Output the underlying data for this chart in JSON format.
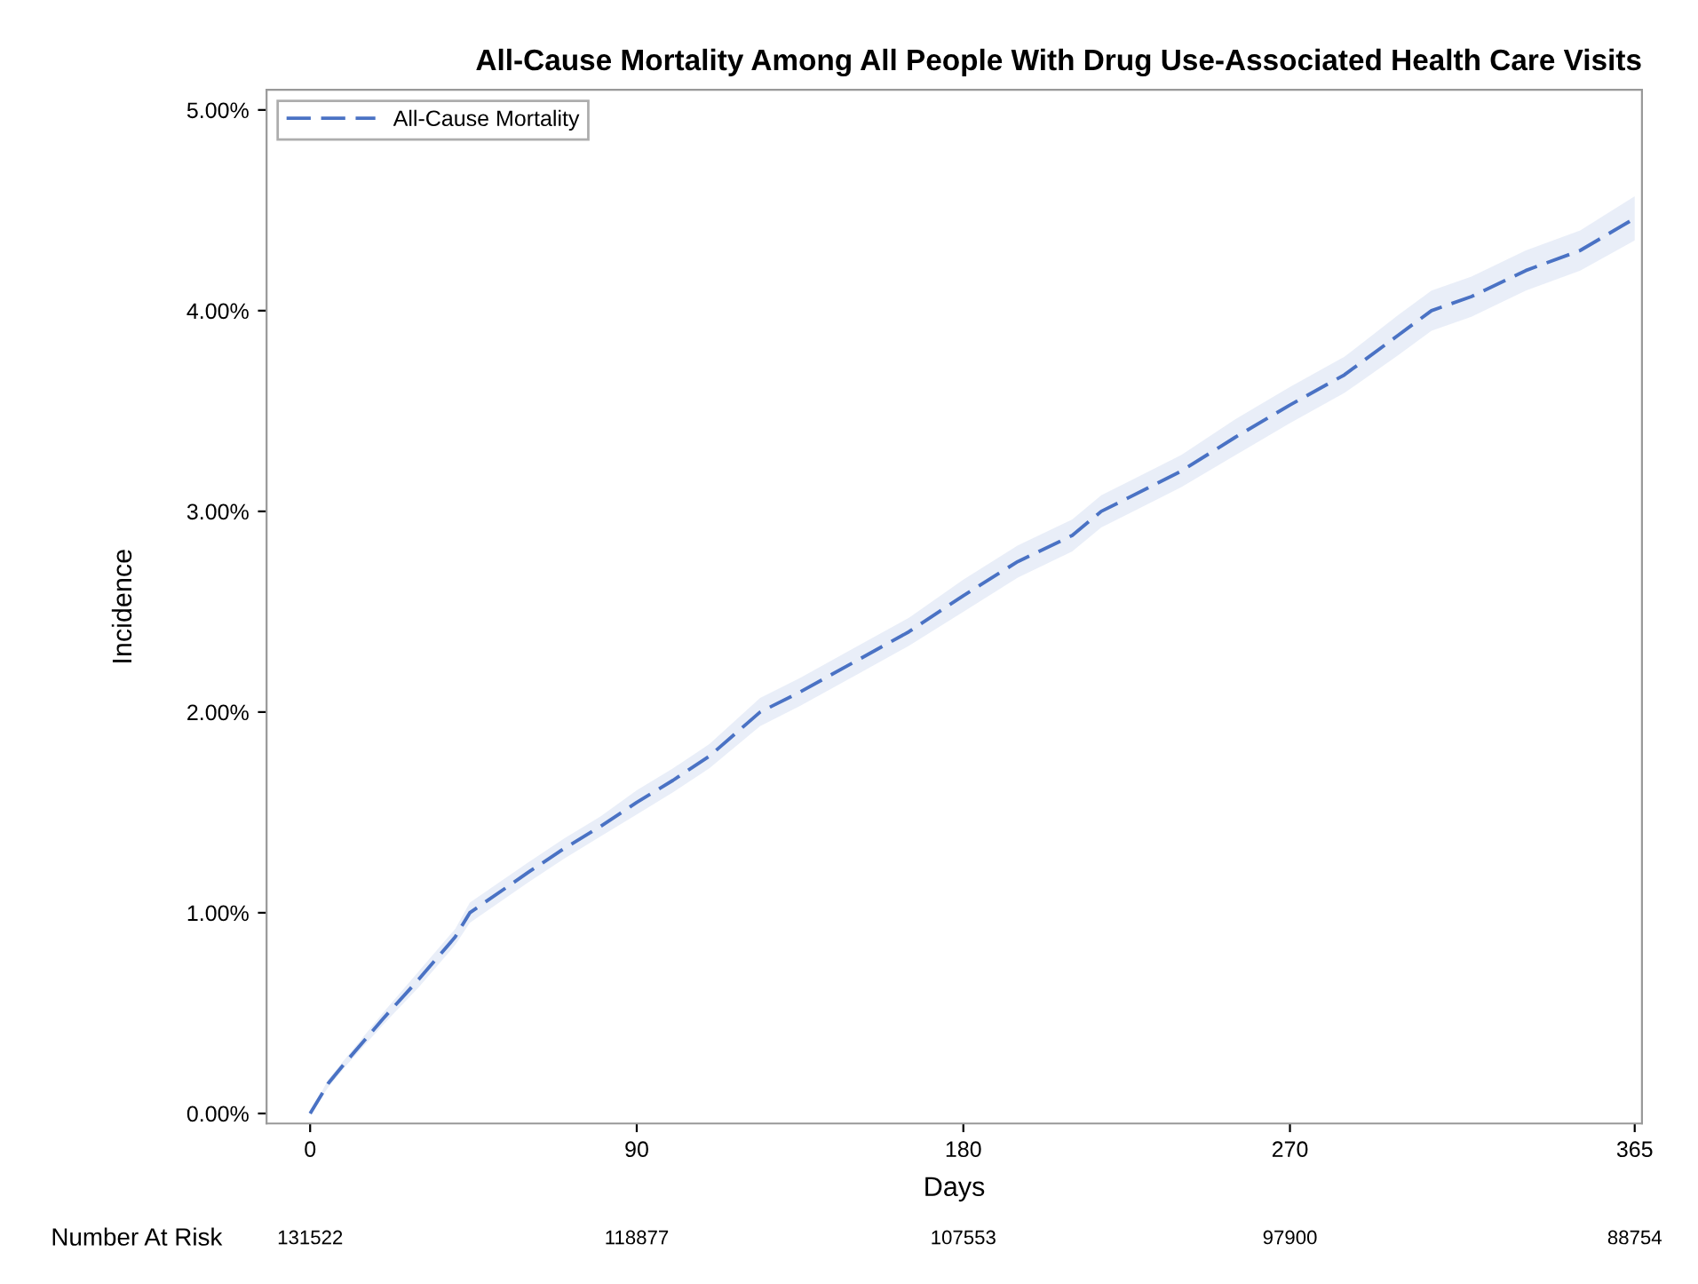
{
  "chart_data": {
    "type": "line",
    "title": "All-Cause Mortality Among All People With Drug Use-Associated Health Care Visits",
    "xlabel": "Days",
    "ylabel": "Incidence",
    "x": [
      0,
      5,
      10,
      20,
      30,
      40,
      44,
      60,
      70,
      80,
      90,
      100,
      110,
      124,
      135,
      150,
      165,
      180,
      195,
      210,
      218,
      240,
      255,
      270,
      285,
      300,
      309,
      320,
      335,
      350,
      365
    ],
    "series": [
      {
        "name": "All-Cause Mortality",
        "color": "#4a72c4",
        "line_style": "dashed",
        "values": [
          0,
          0.15,
          0.26,
          0.47,
          0.67,
          0.88,
          1.0,
          1.2,
          1.32,
          1.43,
          1.55,
          1.66,
          1.78,
          2.0,
          2.1,
          2.25,
          2.4,
          2.58,
          2.75,
          2.88,
          3.0,
          3.2,
          3.37,
          3.53,
          3.68,
          3.88,
          4.0,
          4.07,
          4.2,
          4.3,
          4.46
        ],
        "lower": [
          0,
          0.13,
          0.24,
          0.44,
          0.63,
          0.84,
          0.95,
          1.15,
          1.27,
          1.38,
          1.49,
          1.6,
          1.72,
          1.93,
          2.03,
          2.18,
          2.33,
          2.5,
          2.67,
          2.8,
          2.92,
          3.12,
          3.28,
          3.44,
          3.59,
          3.78,
          3.9,
          3.97,
          4.1,
          4.2,
          4.35
        ],
        "upper": [
          0,
          0.17,
          0.28,
          0.5,
          0.71,
          0.92,
          1.05,
          1.25,
          1.37,
          1.48,
          1.61,
          1.72,
          1.84,
          2.07,
          2.17,
          2.32,
          2.47,
          2.66,
          2.83,
          2.96,
          3.08,
          3.28,
          3.46,
          3.62,
          3.77,
          3.98,
          4.1,
          4.17,
          4.3,
          4.4,
          4.57
        ]
      }
    ],
    "xlim": [
      -12,
      367
    ],
    "ylim": [
      -0.05,
      5.1
    ],
    "xticks": [
      0,
      90,
      180,
      270,
      365
    ],
    "yticks": [
      {
        "value": 0,
        "label": "0.00%"
      },
      {
        "value": 1,
        "label": "1.00%"
      },
      {
        "value": 2,
        "label": "2.00%"
      },
      {
        "value": 3,
        "label": "3.00%"
      },
      {
        "value": 4,
        "label": "4.00%"
      },
      {
        "value": 5,
        "label": "5.00%"
      }
    ],
    "legend": "top left",
    "grid": false,
    "marker": "none",
    "annotations": [
      "Number At Risk",
      "131522",
      "118877",
      "107553",
      "97900",
      "88754"
    ]
  }
}
